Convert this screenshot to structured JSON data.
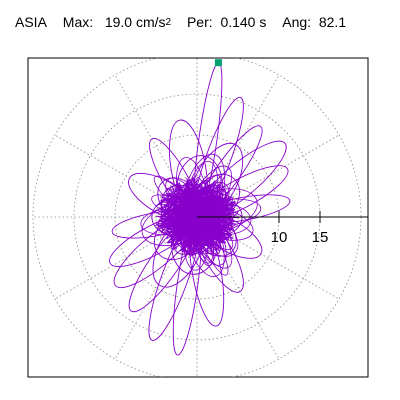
{
  "header": {
    "station": "ASIA",
    "max_label": "Max:",
    "max_value": "19.0",
    "max_unit": "cm/s",
    "max_exp": "2",
    "per_label": "Per:",
    "per_value": "0.140 s",
    "ang_label": "Ang:",
    "ang_value": "82.1"
  },
  "chart_data": {
    "type": "polar-orbit",
    "radial_ticks": [
      {
        "value": 10,
        "label": "10"
      },
      {
        "value": 15,
        "label": "15"
      }
    ],
    "rings": [
      5,
      10,
      15,
      20
    ],
    "radial_max": 19,
    "max_point_angle_deg": 82.1,
    "grid": true,
    "spokes_deg": [
      30,
      60,
      90,
      120,
      150,
      180,
      210,
      240,
      270,
      300,
      330
    ],
    "series": [
      {
        "color": "#8800cc",
        "lobes": [
          {
            "angle_deg": 82,
            "radius": 19.0,
            "width": 2.2
          },
          {
            "angle_deg": 262,
            "radius": 17.0,
            "width": 2.5
          },
          {
            "angle_deg": 70,
            "radius": 15.5,
            "width": 3.0
          },
          {
            "angle_deg": 250,
            "radius": 16.0,
            "width": 3.2
          },
          {
            "angle_deg": 55,
            "radius": 13.5,
            "width": 3.0
          },
          {
            "angle_deg": 235,
            "radius": 14.0,
            "width": 3.5
          },
          {
            "angle_deg": 40,
            "radius": 14.0,
            "width": 4.0
          },
          {
            "angle_deg": 220,
            "radius": 13.0,
            "width": 3.8
          },
          {
            "angle_deg": 28,
            "radius": 12.5,
            "width": 3.5
          },
          {
            "angle_deg": 208,
            "radius": 12.0,
            "width": 3.5
          },
          {
            "angle_deg": 100,
            "radius": 12.0,
            "width": 4.2
          },
          {
            "angle_deg": 280,
            "radius": 13.5,
            "width": 3.5
          },
          {
            "angle_deg": 120,
            "radius": 11.0,
            "width": 3.0
          },
          {
            "angle_deg": 300,
            "radius": 10.5,
            "width": 3.5
          },
          {
            "angle_deg": 150,
            "radius": 9.5,
            "width": 4.0
          },
          {
            "angle_deg": 330,
            "radius": 9.0,
            "width": 3.8
          },
          {
            "angle_deg": 10,
            "radius": 11.5,
            "width": 2.8
          },
          {
            "angle_deg": 190,
            "radius": 10.5,
            "width": 2.8
          },
          {
            "angle_deg": 62,
            "radius": 10.0,
            "width": 5.0
          },
          {
            "angle_deg": 242,
            "radius": 9.5,
            "width": 5.0
          },
          {
            "angle_deg": 85,
            "radius": 7.5,
            "width": 5.5
          },
          {
            "angle_deg": 265,
            "radius": 7.0,
            "width": 5.5
          },
          {
            "angle_deg": 45,
            "radius": 6.5,
            "width": 5.0
          },
          {
            "angle_deg": 225,
            "radius": 6.5,
            "width": 5.0
          },
          {
            "angle_deg": 135,
            "radius": 6.0,
            "width": 4.5
          },
          {
            "angle_deg": 315,
            "radius": 6.0,
            "width": 4.5
          },
          {
            "angle_deg": 0,
            "radius": 5.5,
            "width": 4.5
          },
          {
            "angle_deg": 180,
            "radius": 5.5,
            "width": 4.5
          }
        ]
      }
    ],
    "max_marker_color": "#00a070"
  }
}
